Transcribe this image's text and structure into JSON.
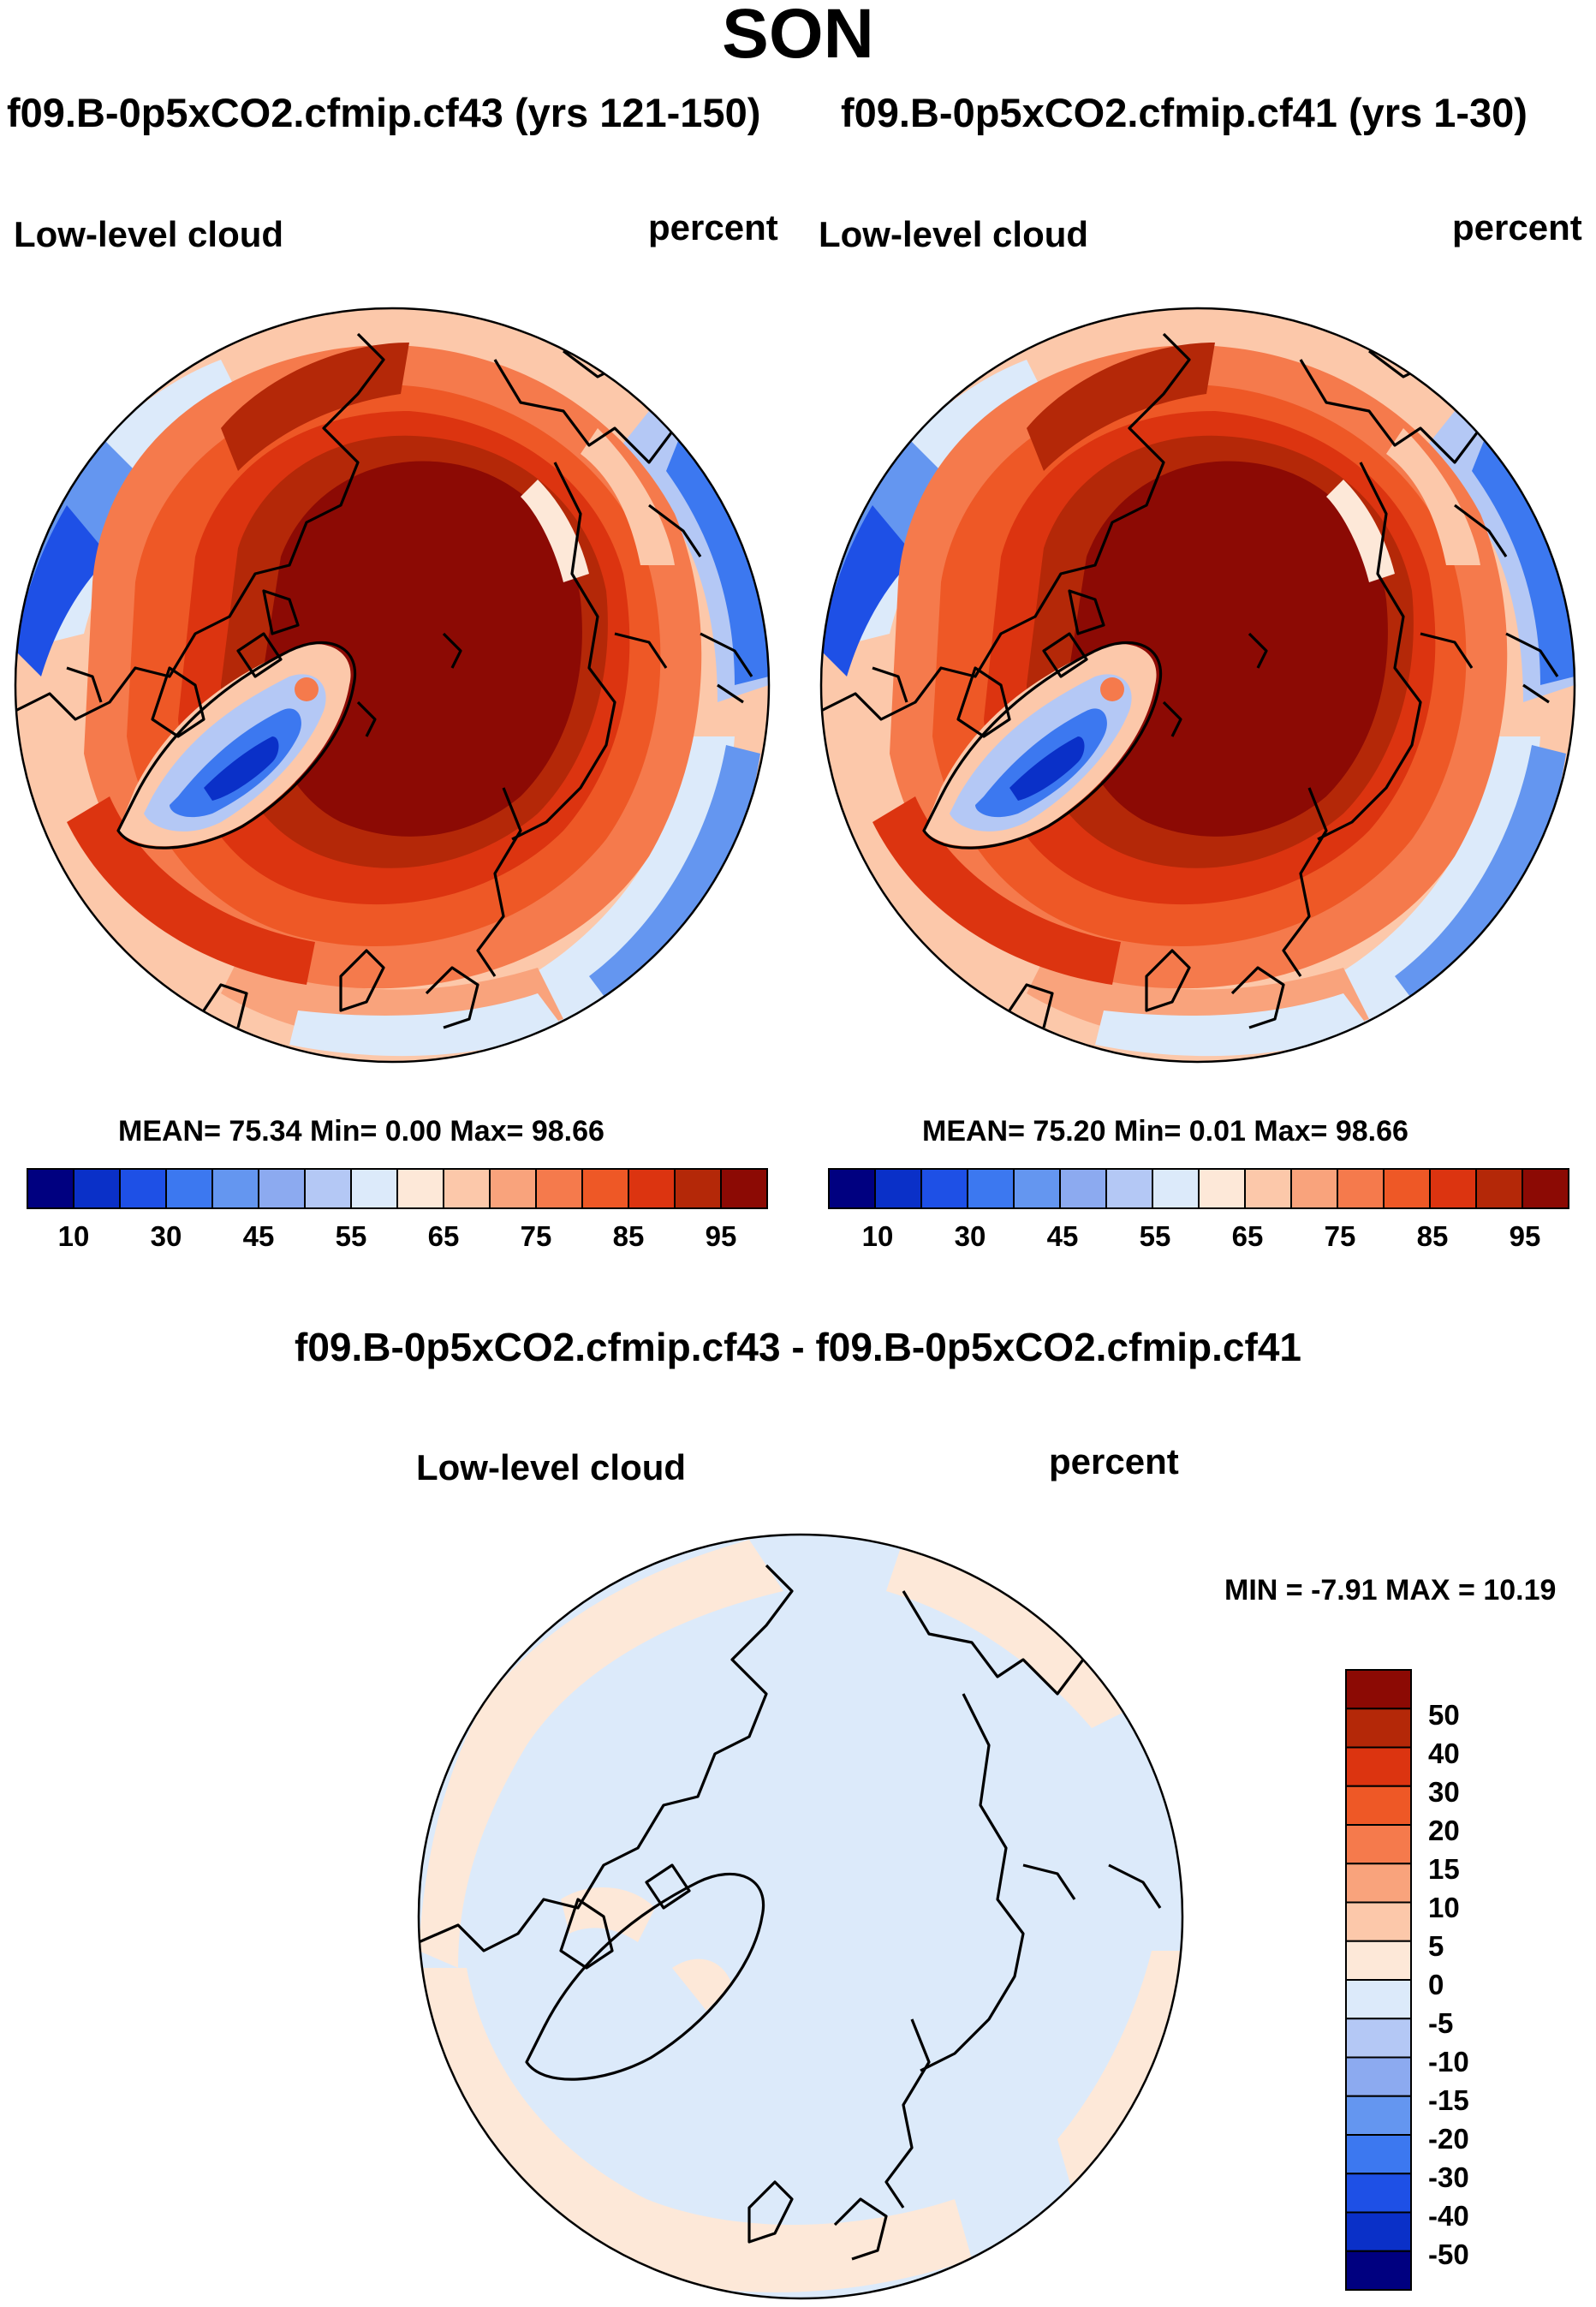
{
  "title": "SON",
  "panels": [
    {
      "case_title": "f09.B-0p5xCO2.cfmip.cf43 (yrs 121-150)",
      "variable": "Low-level cloud",
      "units": "percent",
      "mean_label": "MEAN=",
      "mean": "75.34",
      "min_label": "Min=",
      "min": "0.00",
      "max_label": "Max=",
      "max": "98.66",
      "mean_line": "MEAN=  75.34  Min=   0.00  Max=  98.66"
    },
    {
      "case_title": "f09.B-0p5xCO2.cfmip.cf41 (yrs 1-30)",
      "variable": "Low-level cloud",
      "units": "percent",
      "mean_line": "MEAN=  75.20  Min=   0.01  Max=  98.66"
    }
  ],
  "colorbar_top": {
    "tick_labels": [
      "10",
      "30",
      "45",
      "55",
      "65",
      "75",
      "85",
      "95"
    ],
    "colors": [
      "#000080",
      "#0a30c8",
      "#1e50e6",
      "#3c78f0",
      "#6496f0",
      "#8caaf0",
      "#b4c8f5",
      "#dceafa",
      "#fde8d8",
      "#fcc8aa",
      "#f9a37c",
      "#f57a4c",
      "#ee5826",
      "#dc3410",
      "#b42808",
      "#8c0a04"
    ]
  },
  "diff": {
    "title": "f09.B-0p5xCO2.cfmip.cf43 - f09.B-0p5xCO2.cfmip.cf41",
    "variable": "Low-level cloud",
    "units": "percent",
    "minmax_line": "MIN =  -7.91 MAX =  10.19",
    "levels": [
      "50",
      "40",
      "30",
      "20",
      "15",
      "10",
      "5",
      "0",
      "-5",
      "-10",
      "-15",
      "-20",
      "-30",
      "-40",
      "-50"
    ],
    "colors": [
      "#8c0a04",
      "#b42808",
      "#dc3410",
      "#ee5826",
      "#f57a4c",
      "#f9a37c",
      "#fcc8aa",
      "#fde8d8",
      "#dceafa",
      "#b4c8f5",
      "#8caaf0",
      "#6496f0",
      "#3c78f0",
      "#1e50e6",
      "#0a30c8",
      "#000080"
    ]
  },
  "chart_data": [
    {
      "type": "map",
      "projection": "north polar stereographic",
      "title": "Low-level cloud",
      "units": "percent",
      "mean": 75.34,
      "min": 0.0,
      "max": 98.66,
      "contour_levels": [
        10,
        20,
        30,
        40,
        45,
        50,
        55,
        60,
        65,
        70,
        75,
        80,
        85,
        90,
        95
      ]
    },
    {
      "type": "map",
      "projection": "north polar stereographic",
      "title": "Low-level cloud",
      "units": "percent",
      "mean": 75.2,
      "min": 0.01,
      "max": 98.66,
      "contour_levels": [
        10,
        20,
        30,
        40,
        45,
        50,
        55,
        60,
        65,
        70,
        75,
        80,
        85,
        90,
        95
      ]
    },
    {
      "type": "map",
      "projection": "north polar stereographic",
      "title": "Low-level cloud difference",
      "units": "percent",
      "min": -7.91,
      "max": 10.19,
      "contour_levels": [
        -50,
        -40,
        -30,
        -20,
        -15,
        -10,
        -5,
        0,
        5,
        10,
        15,
        20,
        30,
        40,
        50
      ]
    }
  ]
}
